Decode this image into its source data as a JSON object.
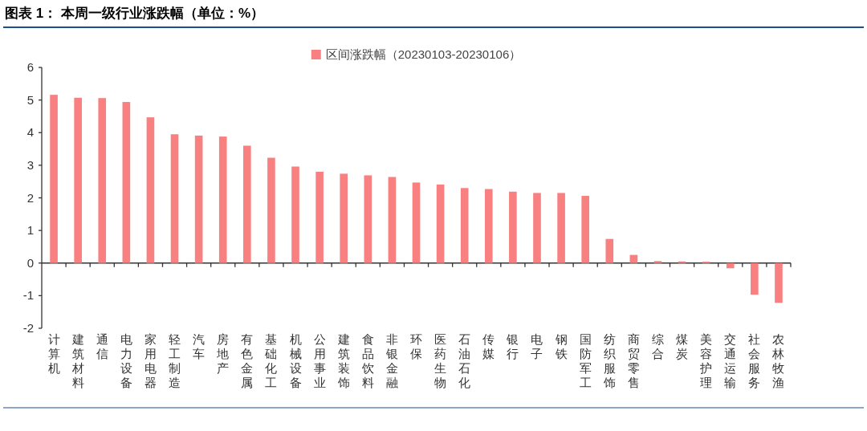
{
  "chart_data": {
    "type": "bar",
    "title": "图表 1： 本周一级行业涨跌幅（单位：%）",
    "categories": [
      "计算机",
      "建筑材料",
      "通信",
      "电力设备",
      "家用电器",
      "轻工制造",
      "汽车",
      "房地产",
      "有色金属",
      "基础化工",
      "机械设备",
      "公用事业",
      "建筑装饰",
      "食品饮料",
      "非银金融",
      "环保",
      "医药生物",
      "石油石化",
      "传媒",
      "银行",
      "电子",
      "钢铁",
      "国防军工",
      "纺织服饰",
      "商贸零售",
      "综合",
      "煤炭",
      "美容护理",
      "交通运输",
      "社会服务",
      "农林牧渔"
    ],
    "series": [
      {
        "name": "区间涨跌幅（20230103-20230106）",
        "color": "#f98080",
        "values": [
          5.16,
          5.07,
          5.06,
          4.94,
          4.47,
          3.95,
          3.91,
          3.88,
          3.6,
          3.23,
          2.96,
          2.8,
          2.74,
          2.69,
          2.64,
          2.47,
          2.41,
          2.3,
          2.27,
          2.19,
          2.15,
          2.15,
          2.06,
          0.74,
          0.25,
          0.06,
          0.05,
          0.04,
          -0.16,
          -0.97,
          -1.22
        ]
      }
    ],
    "ylim": [
      -2,
      6
    ],
    "yticks": [
      -2,
      -1,
      0,
      1,
      2,
      3,
      4,
      5,
      6
    ],
    "legend": "top"
  }
}
